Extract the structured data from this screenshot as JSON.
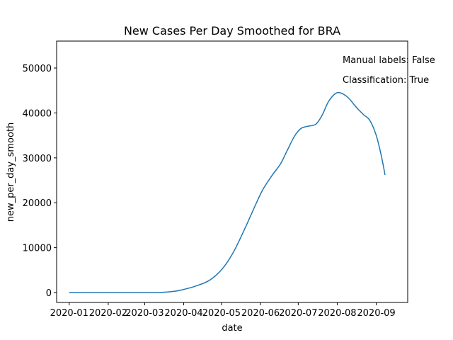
{
  "chart_data": {
    "type": "line",
    "title": "New Cases Per Day Smoothed for BRA",
    "xlabel": "date",
    "ylabel": "new_per_day_smooth",
    "x_ticks": [
      "2020-01",
      "2020-02",
      "2020-03",
      "2020-04",
      "2020-05",
      "2020-06",
      "2020-07",
      "2020-08",
      "2020-09"
    ],
    "y_ticks": [
      0,
      10000,
      20000,
      30000,
      40000,
      50000
    ],
    "xlim": [
      "2019-12-22",
      "2020-09-26"
    ],
    "ylim": [
      -2200,
      56000
    ],
    "annotations": [
      "Manual labels: False",
      "Classification: True"
    ],
    "grid": false,
    "color": "#1f77b4",
    "series": [
      {
        "points": [
          [
            "2020-01-01",
            0
          ],
          [
            "2020-02-01",
            0
          ],
          [
            "2020-03-01",
            0
          ],
          [
            "2020-03-15",
            50
          ],
          [
            "2020-03-25",
            300
          ],
          [
            "2020-04-01",
            700
          ],
          [
            "2020-04-10",
            1400
          ],
          [
            "2020-04-20",
            2500
          ],
          [
            "2020-04-28",
            4200
          ],
          [
            "2020-05-05",
            6500
          ],
          [
            "2020-05-12",
            9800
          ],
          [
            "2020-05-20",
            14500
          ],
          [
            "2020-05-28",
            19500
          ],
          [
            "2020-06-03",
            23000
          ],
          [
            "2020-06-10",
            26000
          ],
          [
            "2020-06-17",
            28700
          ],
          [
            "2020-06-22",
            31500
          ],
          [
            "2020-06-28",
            34800
          ],
          [
            "2020-07-03",
            36500
          ],
          [
            "2020-07-08",
            37000
          ],
          [
            "2020-07-15",
            37500
          ],
          [
            "2020-07-20",
            39500
          ],
          [
            "2020-07-25",
            42500
          ],
          [
            "2020-07-31",
            44400
          ],
          [
            "2020-08-05",
            44300
          ],
          [
            "2020-08-10",
            43300
          ],
          [
            "2020-08-17",
            41000
          ],
          [
            "2020-08-22",
            39600
          ],
          [
            "2020-08-27",
            38300
          ],
          [
            "2020-09-01",
            35000
          ],
          [
            "2020-09-05",
            30500
          ],
          [
            "2020-09-08",
            26200
          ]
        ]
      }
    ]
  }
}
